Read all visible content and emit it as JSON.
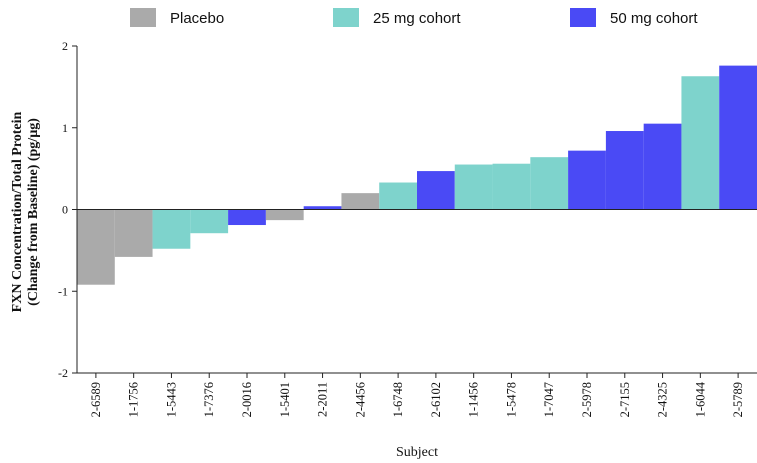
{
  "chart_data": {
    "type": "bar",
    "xlabel": "Subject",
    "ylabel_line1": "FXN Concentration/Total Protein",
    "ylabel_line2": "(Change from Baseline) (pg/µg)",
    "ylim": [
      -2,
      2
    ],
    "yticks": [
      -2,
      -1,
      0,
      1,
      2
    ],
    "grid": false,
    "legend_position": "top",
    "colors": {
      "Placebo": "#aaaaaa",
      "25 mg cohort": "#7ed3cc",
      "50 mg cohort": "#4a4af5"
    },
    "legend": [
      "Placebo",
      "25 mg cohort",
      "50 mg cohort"
    ],
    "categories": [
      "2-6589",
      "1-1756",
      "1-5443",
      "1-7376",
      "2-0016",
      "1-5401",
      "2-2011",
      "2-4456",
      "1-6748",
      "2-6102",
      "1-1456",
      "1-5478",
      "1-7047",
      "2-5978",
      "2-7155",
      "2-4325",
      "1-6044",
      "2-5789"
    ],
    "groups": [
      "Placebo",
      "Placebo",
      "25 mg cohort",
      "25 mg cohort",
      "50 mg cohort",
      "Placebo",
      "50 mg cohort",
      "Placebo",
      "25 mg cohort",
      "50 mg cohort",
      "25 mg cohort",
      "25 mg cohort",
      "25 mg cohort",
      "50 mg cohort",
      "50 mg cohort",
      "50 mg cohort",
      "25 mg cohort",
      "50 mg cohort"
    ],
    "values": [
      -0.92,
      -0.58,
      -0.48,
      -0.29,
      -0.19,
      -0.13,
      0.04,
      0.2,
      0.33,
      0.47,
      0.55,
      0.56,
      0.64,
      0.72,
      0.96,
      1.05,
      1.63,
      1.76
    ]
  }
}
